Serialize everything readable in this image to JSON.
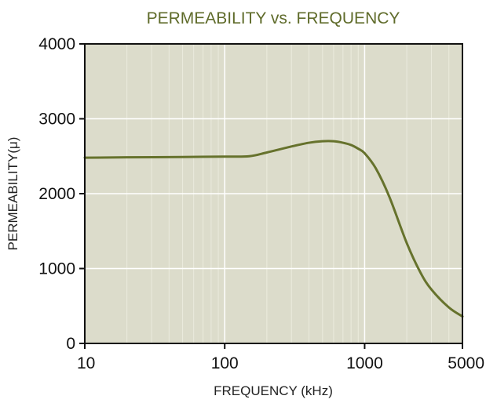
{
  "colors": {
    "plot_background": "#dcdccb",
    "series_line": "#66722c",
    "title": "#5f6b2a",
    "grid_major": "#ffffff",
    "grid_minor": "#ebebdd",
    "axes": "#111111"
  },
  "chart_data": {
    "type": "line",
    "title": "PERMEABILITY vs. FREQUENCY",
    "xlabel": "FREQUENCY (kHz)",
    "ylabel": "PERMEABILITY(μ)",
    "xscale": "log",
    "xlim": [
      10,
      5000
    ],
    "ylim": [
      0,
      4000
    ],
    "x_ticks": [
      10,
      100,
      1000,
      5000
    ],
    "x_tick_labels": [
      "10",
      "100",
      "1000",
      "5000"
    ],
    "y_ticks": [
      0,
      1000,
      2000,
      3000,
      4000
    ],
    "y_tick_labels": [
      "0",
      "1000",
      "2000",
      "3000",
      "4000"
    ],
    "grid": true,
    "legend": "none",
    "series": [
      {
        "x": [
          10,
          20,
          50,
          100,
          150,
          200,
          300,
          400,
          500,
          600,
          700,
          800,
          900,
          1000,
          1200,
          1500,
          2000,
          2500,
          3000,
          4000,
          5000
        ],
        "y": [
          2480,
          2485,
          2490,
          2495,
          2500,
          2550,
          2630,
          2680,
          2700,
          2700,
          2680,
          2650,
          2600,
          2540,
          2340,
          1960,
          1340,
          950,
          720,
          480,
          360
        ]
      }
    ]
  }
}
